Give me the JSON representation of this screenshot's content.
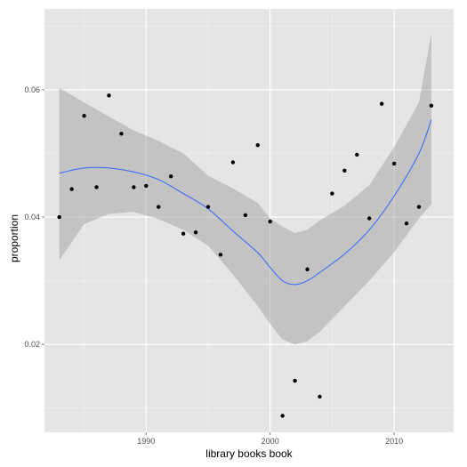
{
  "chart_data": {
    "type": "scatter",
    "title": "",
    "xlabel": "library books book",
    "ylabel": "proportion",
    "xlim": [
      1981.8,
      2014.8
    ],
    "ylim": [
      0.0062,
      0.0727
    ],
    "x_ticks": [
      1990,
      2000,
      2010
    ],
    "y_ticks": [
      0.02,
      0.04,
      0.06
    ],
    "x_minor_ticks": [
      1985,
      1995,
      2005
    ],
    "y_minor_ticks": [
      0.01,
      0.03,
      0.05,
      0.07
    ],
    "x_tick_labels": [
      "1990",
      "2000",
      "2010"
    ],
    "y_tick_labels": [
      "0.02",
      "0.04",
      "0.06"
    ],
    "grid": true,
    "legend": "none",
    "colors": {
      "panel_background": "#e5e5e5",
      "grid_major": "#ffffff",
      "grid_minor": "#f2f2f2",
      "points": "#000000",
      "smooth_line": "#3366ff",
      "confidence_band": "#999999"
    },
    "points": [
      {
        "x": 1983,
        "y": 0.04
      },
      {
        "x": 1984,
        "y": 0.0444
      },
      {
        "x": 1985,
        "y": 0.0559
      },
      {
        "x": 1986,
        "y": 0.0447
      },
      {
        "x": 1987,
        "y": 0.0591
      },
      {
        "x": 1988,
        "y": 0.0531
      },
      {
        "x": 1989,
        "y": 0.0447
      },
      {
        "x": 1990,
        "y": 0.0449
      },
      {
        "x": 1991,
        "y": 0.0416
      },
      {
        "x": 1992,
        "y": 0.0464
      },
      {
        "x": 1993,
        "y": 0.0374
      },
      {
        "x": 1994,
        "y": 0.0376
      },
      {
        "x": 1995,
        "y": 0.0416
      },
      {
        "x": 1996,
        "y": 0.0341
      },
      {
        "x": 1997,
        "y": 0.0486
      },
      {
        "x": 1998,
        "y": 0.0403
      },
      {
        "x": 1999,
        "y": 0.0513
      },
      {
        "x": 2000,
        "y": 0.0393
      },
      {
        "x": 2001,
        "y": 0.0088
      },
      {
        "x": 2002,
        "y": 0.0143
      },
      {
        "x": 2003,
        "y": 0.0318
      },
      {
        "x": 2004,
        "y": 0.0118
      },
      {
        "x": 2005,
        "y": 0.0437
      },
      {
        "x": 2006,
        "y": 0.0473
      },
      {
        "x": 2007,
        "y": 0.0498
      },
      {
        "x": 2008,
        "y": 0.0398
      },
      {
        "x": 2009,
        "y": 0.0578
      },
      {
        "x": 2010,
        "y": 0.0484
      },
      {
        "x": 2011,
        "y": 0.039
      },
      {
        "x": 2012,
        "y": 0.0416
      },
      {
        "x": 2013,
        "y": 0.0575
      }
    ],
    "smooth": {
      "x": [
        1983,
        1985,
        1987,
        1989,
        1991,
        1993,
        1995,
        1997,
        1999,
        2000,
        2001,
        2002,
        2003,
        2004,
        2006,
        2008,
        2010,
        2012,
        2013
      ],
      "y": [
        0.0469,
        0.0477,
        0.0477,
        0.0471,
        0.0459,
        0.0437,
        0.0413,
        0.0378,
        0.0344,
        0.0321,
        0.03,
        0.0294,
        0.03,
        0.0313,
        0.0342,
        0.038,
        0.0433,
        0.05,
        0.0553
      ],
      "lower": [
        0.0332,
        0.0389,
        0.0405,
        0.0408,
        0.0397,
        0.038,
        0.0355,
        0.031,
        0.026,
        0.0232,
        0.0208,
        0.02,
        0.0205,
        0.022,
        0.026,
        0.03,
        0.0345,
        0.0398,
        0.042
      ],
      "upper": [
        0.0603,
        0.058,
        0.0558,
        0.0536,
        0.052,
        0.05,
        0.0465,
        0.0445,
        0.0422,
        0.0398,
        0.0385,
        0.0375,
        0.038,
        0.0395,
        0.0418,
        0.045,
        0.051,
        0.058,
        0.0688
      ]
    }
  }
}
